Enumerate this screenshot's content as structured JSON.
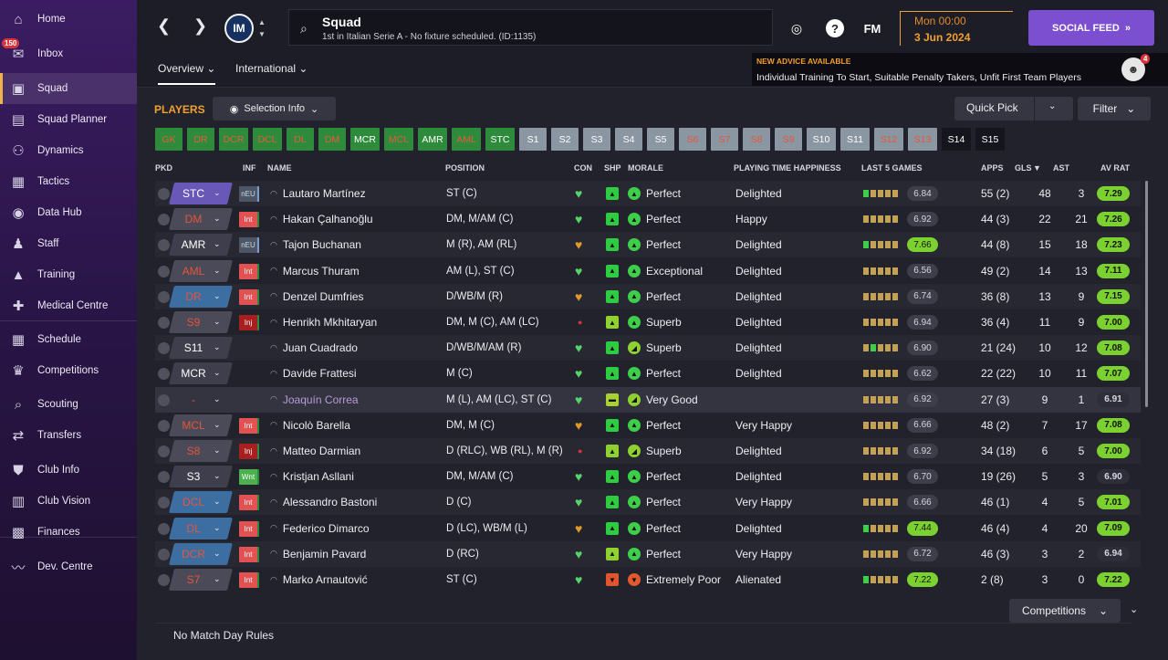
{
  "nav": [
    {
      "label": "Home",
      "icon": "home-icon",
      "glyph": "⌂"
    },
    {
      "label": "Inbox",
      "icon": "inbox-icon",
      "glyph": "✉"
    },
    {
      "label": "Squad",
      "icon": "squad-icon",
      "glyph": "▣"
    },
    {
      "label": "Squad Planner",
      "icon": "squad-planner-icon",
      "glyph": "▤"
    },
    {
      "label": "Dynamics",
      "icon": "dynamics-icon",
      "glyph": "⚇"
    },
    {
      "label": "Tactics",
      "icon": "tactics-icon",
      "glyph": "▦"
    },
    {
      "label": "Data Hub",
      "icon": "data-hub-icon",
      "glyph": "◉"
    },
    {
      "label": "Staff",
      "icon": "staff-icon",
      "glyph": "♟"
    },
    {
      "label": "Training",
      "icon": "training-icon",
      "glyph": "▲"
    },
    {
      "label": "Medical Centre",
      "icon": "medical-centre-icon",
      "glyph": "✚"
    },
    {
      "label": "Schedule",
      "icon": "schedule-icon",
      "glyph": "▦"
    },
    {
      "label": "Competitions",
      "icon": "competitions-icon",
      "glyph": "♛"
    },
    {
      "label": "Scouting",
      "icon": "scouting-icon",
      "glyph": "⌕"
    },
    {
      "label": "Transfers",
      "icon": "transfers-icon",
      "glyph": "⇄"
    },
    {
      "label": "Club Info",
      "icon": "club-info-icon",
      "glyph": "⛊"
    },
    {
      "label": "Club Vision",
      "icon": "club-vision-icon",
      "glyph": "▥"
    },
    {
      "label": "Finances",
      "icon": "finances-icon",
      "glyph": "▩"
    },
    {
      "label": "Dev. Centre",
      "icon": "dev-centre-icon",
      "glyph": "〰"
    }
  ],
  "inbox_badge": "150",
  "header": {
    "club_abbr": "IM",
    "title": "Squad",
    "subtitle": "1st in Italian Serie A - No fixture scheduled. (ID:1135)",
    "fm_logo": "FM",
    "help": "?",
    "date_time": "Mon 00:00",
    "date": "3 Jun 2024",
    "social_feed": "SOCIAL FEED"
  },
  "tabs": [
    {
      "label": "Overview"
    },
    {
      "label": "International"
    }
  ],
  "advice": {
    "title": "NEW ADVICE AVAILABLE",
    "text": "Individual Training To Start, Suitable Penalty Takers, Unfit First Team Players",
    "badge": "4"
  },
  "toolbar": {
    "players_title": "PLAYERS",
    "selection_info": "Selection Info",
    "quick_pick": "Quick Pick",
    "filter": "Filter"
  },
  "positions": [
    {
      "label": "GK",
      "style": "gr"
    },
    {
      "label": "DR",
      "style": "gr"
    },
    {
      "label": "DCR",
      "style": "gr"
    },
    {
      "label": "DCL",
      "style": "gr"
    },
    {
      "label": "DL",
      "style": "gr"
    },
    {
      "label": "DM",
      "style": "gr"
    },
    {
      "label": "MCR",
      "style": "gw"
    },
    {
      "label": "MCL",
      "style": "gr"
    },
    {
      "label": "AMR",
      "style": "gw"
    },
    {
      "label": "AML",
      "style": "gr"
    },
    {
      "label": "STC",
      "style": "gw"
    },
    {
      "label": "S1",
      "style": "sw"
    },
    {
      "label": "S2",
      "style": "sw"
    },
    {
      "label": "S3",
      "style": "sw"
    },
    {
      "label": "S4",
      "style": "sw"
    },
    {
      "label": "S5",
      "style": "sw"
    },
    {
      "label": "S6",
      "style": "sr"
    },
    {
      "label": "S7",
      "style": "sr"
    },
    {
      "label": "S8",
      "style": "sr"
    },
    {
      "label": "S9",
      "style": "sr"
    },
    {
      "label": "S10",
      "style": "sw"
    },
    {
      "label": "S11",
      "style": "sw"
    },
    {
      "label": "S12",
      "style": "sr"
    },
    {
      "label": "S13",
      "style": "sr"
    },
    {
      "label": "S14",
      "style": "dk"
    },
    {
      "label": "S15",
      "style": "dk"
    }
  ],
  "columns": {
    "pkd": "PKD",
    "inf": "INF",
    "name": "NAME",
    "position": "POSITION",
    "con": "CON",
    "shp": "SHP",
    "morale": "MORALE",
    "pth": "PLAYING TIME HAPPINESS",
    "last5": "LAST 5 GAMES",
    "apps": "APPS",
    "gls": "GLS",
    "ast": "AST",
    "avrat": "AV RAT"
  },
  "players": [
    {
      "role": "STC",
      "role_style": "purple",
      "inf": "nEU",
      "inf_style": "neu",
      "name": "Lautaro Martínez",
      "position": "ST (C)",
      "con": "fit",
      "shp": "up",
      "morale_ico": "up",
      "morale": "Perfect",
      "pth": "Delighted",
      "l5": "gmmmm",
      "l5v": "6.84",
      "l5s": "n",
      "apps": "55 (2)",
      "gls": "48",
      "ast": "3",
      "avr": "7.29",
      "avrs": "g"
    },
    {
      "role": "DM",
      "role_style": "redtext",
      "inf": "Int",
      "inf_style": "int",
      "name": "Hakan Çalhanoğlu",
      "position": "DM, M/AM (C)",
      "con": "fit",
      "shp": "up",
      "morale_ico": "up",
      "morale": "Perfect",
      "pth": "Happy",
      "l5": "mmmmm",
      "l5v": "6.92",
      "l5s": "n",
      "apps": "44 (3)",
      "gls": "22",
      "ast": "21",
      "avr": "7.26",
      "avrs": "g"
    },
    {
      "role": "AMR",
      "role_style": "dark",
      "inf": "nEU",
      "inf_style": "neu",
      "name": "Tajon Buchanan",
      "position": "M (R), AM (RL)",
      "con": "ok",
      "shp": "up",
      "morale_ico": "up",
      "morale": "Perfect",
      "pth": "Delighted",
      "l5": "gmmmm",
      "l5v": "7.66",
      "l5s": "g",
      "apps": "44 (8)",
      "gls": "15",
      "ast": "18",
      "avr": "7.23",
      "avrs": "g"
    },
    {
      "role": "AML",
      "role_style": "redtext",
      "inf": "Int",
      "inf_style": "int",
      "name": "Marcus Thuram",
      "position": "AM (L), ST (C)",
      "con": "fit",
      "shp": "up",
      "morale_ico": "up",
      "morale": "Exceptional",
      "pth": "Delighted",
      "l5": "mmmmm",
      "l5v": "6.56",
      "l5s": "n",
      "apps": "49 (2)",
      "gls": "14",
      "ast": "13",
      "avr": "7.11",
      "avrs": "g"
    },
    {
      "role": "DR",
      "role_style": "blue",
      "inf": "Int",
      "inf_style": "int",
      "name": "Denzel Dumfries",
      "position": "D/WB/M (R)",
      "con": "ok",
      "shp": "up",
      "morale_ico": "up",
      "morale": "Perfect",
      "pth": "Delighted",
      "l5": "mmmmm",
      "l5v": "6.74",
      "l5s": "n",
      "apps": "36 (8)",
      "gls": "13",
      "ast": "9",
      "avr": "7.15",
      "avrs": "g"
    },
    {
      "role": "S9",
      "role_style": "redtext",
      "inf": "Inj",
      "inf_style": "inj",
      "name": "Henrikh Mkhitaryan",
      "position": "DM, M (C), AM (LC)",
      "con": "inj",
      "shp": "sup",
      "morale_ico": "up",
      "morale": "Superb",
      "pth": "Delighted",
      "l5": "mmmmm",
      "l5v": "6.94",
      "l5s": "n",
      "apps": "36 (4)",
      "gls": "11",
      "ast": "9",
      "avr": "7.00",
      "avrs": "g"
    },
    {
      "role": "S11",
      "role_style": "dark",
      "inf": "",
      "inf_style": "none",
      "name": "Juan Cuadrado",
      "position": "D/WB/M/AM (R)",
      "con": "fit",
      "shp": "up",
      "morale_ico": "sup",
      "morale": "Superb",
      "pth": "Delighted",
      "l5": "mgmmm",
      "l5v": "6.90",
      "l5s": "n",
      "apps": "21 (24)",
      "gls": "10",
      "ast": "12",
      "avr": "7.08",
      "avrs": "g"
    },
    {
      "role": "MCR",
      "role_style": "dark",
      "inf": "",
      "inf_style": "none",
      "name": "Davide Frattesi",
      "position": "M (C)",
      "con": "fit",
      "shp": "up",
      "morale_ico": "up",
      "morale": "Perfect",
      "pth": "Delighted",
      "l5": "mmmmm",
      "l5v": "6.62",
      "l5s": "n",
      "apps": "22 (22)",
      "gls": "10",
      "ast": "11",
      "avr": "7.07",
      "avrs": "g"
    },
    {
      "role": "-",
      "role_style": "none",
      "inf": "",
      "inf_style": "none",
      "name": "Joaquín Correa",
      "position": "M (L), AM (LC), ST (C)",
      "con": "fit",
      "shp": "mid",
      "morale_ico": "sup",
      "morale": "Very Good",
      "pth": "",
      "l5": "mmmmm",
      "l5v": "6.92",
      "l5s": "n",
      "apps": "27 (3)",
      "gls": "9",
      "ast": "1",
      "avr": "6.91",
      "avrs": "n"
    },
    {
      "role": "MCL",
      "role_style": "redtext",
      "inf": "Int",
      "inf_style": "int",
      "name": "Nicolò Barella",
      "position": "DM, M (C)",
      "con": "ok",
      "shp": "up",
      "morale_ico": "up",
      "morale": "Perfect",
      "pth": "Very Happy",
      "l5": "mmmmm",
      "l5v": "6.66",
      "l5s": "n",
      "apps": "48 (2)",
      "gls": "7",
      "ast": "17",
      "avr": "7.08",
      "avrs": "g"
    },
    {
      "role": "S8",
      "role_style": "redtext",
      "inf": "Inj",
      "inf_style": "inj",
      "name": "Matteo Darmian",
      "position": "D (RLC), WB (RL), M (R)",
      "con": "inj",
      "shp": "sup",
      "morale_ico": "sup",
      "morale": "Superb",
      "pth": "Delighted",
      "l5": "mmmmm",
      "l5v": "6.92",
      "l5s": "n",
      "apps": "34 (18)",
      "gls": "6",
      "ast": "5",
      "avr": "7.00",
      "avrs": "g"
    },
    {
      "role": "S3",
      "role_style": "dark",
      "inf": "Wnt",
      "inf_style": "wnt",
      "name": "Kristjan Asllani",
      "position": "DM, M/AM (C)",
      "con": "fit",
      "shp": "up",
      "morale_ico": "up",
      "morale": "Perfect",
      "pth": "Delighted",
      "l5": "mmmmm",
      "l5v": "6.70",
      "l5s": "n",
      "apps": "19 (26)",
      "gls": "5",
      "ast": "3",
      "avr": "6.90",
      "avrs": "n"
    },
    {
      "role": "DCL",
      "role_style": "blue",
      "inf": "Int",
      "inf_style": "int",
      "name": "Alessandro Bastoni",
      "position": "D (C)",
      "con": "fit",
      "shp": "up",
      "morale_ico": "up",
      "morale": "Perfect",
      "pth": "Very Happy",
      "l5": "mmmmm",
      "l5v": "6.66",
      "l5s": "n",
      "apps": "46 (1)",
      "gls": "4",
      "ast": "5",
      "avr": "7.01",
      "avrs": "g"
    },
    {
      "role": "DL",
      "role_style": "blue",
      "inf": "Int",
      "inf_style": "int",
      "name": "Federico Dimarco",
      "position": "D (LC), WB/M (L)",
      "con": "ok",
      "shp": "up",
      "morale_ico": "up",
      "morale": "Perfect",
      "pth": "Delighted",
      "l5": "gmmmm",
      "l5v": "7.44",
      "l5s": "g",
      "apps": "46 (4)",
      "gls": "4",
      "ast": "20",
      "avr": "7.09",
      "avrs": "g"
    },
    {
      "role": "DCR",
      "role_style": "blue",
      "inf": "Int",
      "inf_style": "int",
      "name": "Benjamin Pavard",
      "position": "D (RC)",
      "con": "fit",
      "shp": "sup",
      "morale_ico": "up",
      "morale": "Perfect",
      "pth": "Very Happy",
      "l5": "mmmmm",
      "l5v": "6.72",
      "l5s": "n",
      "apps": "46 (3)",
      "gls": "3",
      "ast": "2",
      "avr": "6.94",
      "avrs": "n"
    },
    {
      "role": "S7",
      "role_style": "redtext",
      "inf": "Int",
      "inf_style": "int",
      "name": "Marko Arnautović",
      "position": "ST (C)",
      "con": "fit",
      "shp": "down",
      "morale_ico": "down",
      "morale": "Extremely Poor",
      "pth": "Alienated",
      "l5": "gmmmm",
      "l5v": "7.22",
      "l5s": "g",
      "apps": "2 (8)",
      "gls": "3",
      "ast": "0",
      "avr": "7.22",
      "avrs": "g"
    }
  ],
  "bottom": {
    "competitions": "Competitions",
    "no_match_rules": "No Match Day Rules"
  },
  "colors": {
    "accent": "#f0a030",
    "green": "#2e8b3c",
    "social": "#7b4fd0",
    "rating_green": "#7bd130"
  }
}
